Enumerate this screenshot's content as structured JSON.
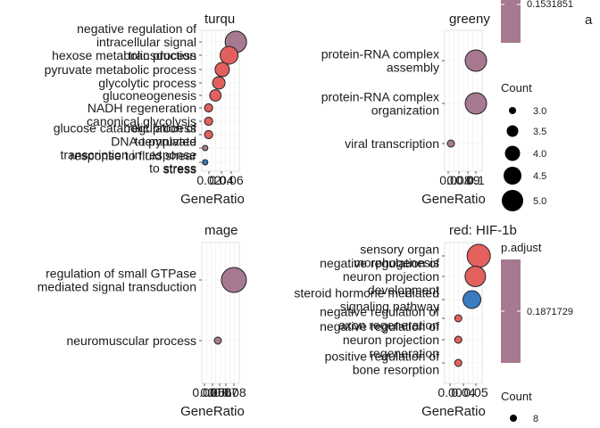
{
  "chart_data": [
    {
      "type": "scatter",
      "title": "turqu",
      "xlabel": "GeneRatio",
      "ylabel": "",
      "x_ticks": [
        "0.02",
        "0.04",
        "0.06"
      ],
      "categories": [
        "negative regulation of intracellular signal transduction",
        "hexose metabolic process",
        "pyruvate metabolic process",
        "glycolytic process",
        "gluconeogenesis",
        "NADH regeneration",
        "canonical glycolysis",
        "glucose catabolic process to pyruvate",
        "regulation of DNA-templated transcription in response to stress",
        "response to fluid shear stress"
      ],
      "points": [
        {
          "y": "negative regulation of intracellular signal transduction",
          "x": 0.06,
          "count": 6,
          "color": "#a77990"
        },
        {
          "y": "hexose metabolic process",
          "x": 0.05,
          "count": 5,
          "color": "#e2605e"
        },
        {
          "y": "pyruvate metabolic process",
          "x": 0.04,
          "count": 4,
          "color": "#e2605e"
        },
        {
          "y": "glycolytic process",
          "x": 0.035,
          "count": 3.5,
          "color": "#e2605e"
        },
        {
          "y": "gluconeogenesis",
          "x": 0.03,
          "count": 3.2,
          "color": "#e2605e"
        },
        {
          "y": "NADH regeneration",
          "x": 0.02,
          "count": 2.3,
          "color": "#e2605e"
        },
        {
          "y": "canonical glycolysis",
          "x": 0.02,
          "count": 2.3,
          "color": "#e2605e"
        },
        {
          "y": "glucose catabolic process to pyruvate",
          "x": 0.02,
          "count": 2.3,
          "color": "#e2605e"
        },
        {
          "y": "regulation of DNA-templated transcription in response to stress",
          "x": 0.015,
          "count": 1.5,
          "color": "#a77990"
        },
        {
          "y": "response to fluid shear stress",
          "x": 0.015,
          "count": 1.5,
          "color": "#3a7bbf"
        }
      ]
    },
    {
      "type": "scatter",
      "title": "greeny",
      "xlabel": "GeneRatio",
      "ylabel": "",
      "x_ticks": [
        "0.0",
        "0.08",
        "0.09",
        "0.1"
      ],
      "categories": [
        "protein-RNA complex assembly",
        "protein-RNA complex organization",
        "viral transcription"
      ],
      "points": [
        {
          "y": "protein-RNA complex assembly",
          "x": 0.1,
          "count": 5,
          "color": "#a77990"
        },
        {
          "y": "protein-RNA complex organization",
          "x": 0.1,
          "count": 5,
          "color": "#a77990"
        },
        {
          "y": "viral transcription",
          "x": 0.08,
          "count": 3,
          "color": "#a77990"
        }
      ]
    },
    {
      "type": "scatter",
      "title": "mage",
      "xlabel": "GeneRatio",
      "ylabel": "",
      "x_ticks": [
        "0.00",
        "0.05",
        "0.06",
        "0.07",
        "0.08"
      ],
      "categories": [
        "regulation of small GTPase mediated signal transduction",
        "neuromuscular process"
      ],
      "points": [
        {
          "y": "regulation of small GTPase mediated signal transduction",
          "x": 0.08,
          "count": 8,
          "color": "#a77990"
        },
        {
          "y": "neuromuscular process",
          "x": 0.05,
          "count": 3,
          "color": "#a77990"
        }
      ]
    },
    {
      "type": "scatter",
      "title": "red: HIF-1b",
      "xlabel": "GeneRatio",
      "ylabel": "",
      "x_ticks": [
        "0.00",
        "0.04",
        "0.05"
      ],
      "categories": [
        "sensory organ morphogenesis",
        "negative regulation of neuron projection development",
        "steroid hormone mediated signaling pathway",
        "negative regulation of axon regeneration",
        "negative regulation of neuron projection regeneration",
        "positive regulation of bone resorption"
      ],
      "points": [
        {
          "y": "sensory organ morphogenesis",
          "x": 0.05,
          "count": 8,
          "color": "#e2605e"
        },
        {
          "y": "negative regulation of neuron projection development",
          "x": 0.045,
          "count": 7,
          "color": "#e2605e"
        },
        {
          "y": "steroid hormone mediated signaling pathway",
          "x": 0.04,
          "count": 6,
          "color": "#3a7bbf"
        },
        {
          "y": "negative regulation of axon regeneration",
          "x": 0.02,
          "count": 2,
          "color": "#e2605e"
        },
        {
          "y": "negative regulation of neuron projection regeneration",
          "x": 0.02,
          "count": 2,
          "color": "#e2605e"
        },
        {
          "y": "positive regulation of bone resorption",
          "x": 0.02,
          "count": 2,
          "color": "#e2605e"
        }
      ]
    }
  ],
  "legends": {
    "top_colorbar_value": "0.1531851",
    "top_colorbar_suffix": "a",
    "count_title_top": "Count",
    "count_values_top": [
      "3.0",
      "3.5",
      "4.0",
      "4.5",
      "5.0"
    ],
    "padjust_title": "p.adjust",
    "padjust_value": "0.1871729",
    "count_title_bottom": "Count",
    "count_values_bottom": [
      "8"
    ],
    "colorbar_color": "#a77990"
  }
}
